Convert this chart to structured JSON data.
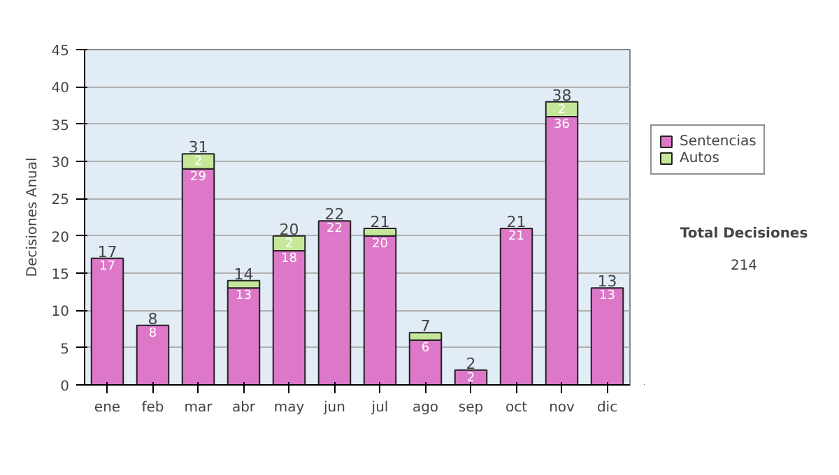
{
  "chart_data": {
    "type": "bar",
    "stacked": true,
    "ylabel": "Decisiones Anual",
    "categories": [
      "ene",
      "feb",
      "mar",
      "abr",
      "may",
      "jun",
      "jul",
      "ago",
      "sep",
      "oct",
      "nov",
      "dic"
    ],
    "series": [
      {
        "name": "Sentencias",
        "color": "#dd77c8",
        "values": [
          17,
          8,
          29,
          13,
          18,
          22,
          20,
          6,
          2,
          21,
          36,
          13
        ],
        "value_labels": [
          "17",
          "8",
          "29",
          "13",
          "18",
          "22",
          "20",
          "6",
          "2",
          "21",
          "36",
          "13"
        ]
      },
      {
        "name": "Autos",
        "color": "#c6e79a",
        "values": [
          0,
          0,
          2,
          1,
          2,
          0,
          1,
          1,
          0,
          0,
          2,
          0
        ],
        "value_labels": [
          null,
          null,
          "2",
          null,
          "2",
          null,
          null,
          null,
          null,
          null,
          "2",
          null
        ]
      }
    ],
    "totals": [
      "17",
      "8",
      "31",
      "14",
      "20",
      "22",
      "21",
      "7",
      "2",
      "21",
      "38",
      "13"
    ],
    "ylim": [
      0,
      45
    ],
    "yticks": [
      0,
      5,
      10,
      15,
      20,
      25,
      30,
      35,
      40,
      45
    ],
    "grid": "y",
    "legend": "right",
    "annotations": [
      "Total Decisiones",
      "214"
    ]
  }
}
